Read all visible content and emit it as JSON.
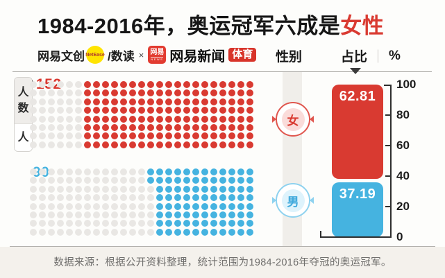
{
  "title": {
    "text": "1984-2016年，奥运冠军六成是",
    "highlight": "女性"
  },
  "brand": {
    "creative": "网易文创",
    "netease": "NetEase",
    "shudu": "/数读",
    "times": "×",
    "news_icon_top": "网易",
    "news_icon_bottom": "NEWS",
    "news_name": "网易新闻",
    "sports": "体育"
  },
  "table_header": {
    "gender": "性别",
    "share": "占比",
    "separator": "｜",
    "unit": "%"
  },
  "unit_tab": {
    "label": "人数",
    "unit": "人"
  },
  "colors": {
    "red": "#d93a31",
    "blue": "#45b3e0",
    "empty_dot": "#e9e7e4",
    "footer_bg": "#f4f1ec"
  },
  "waffle": {
    "cols": 25,
    "rows": 8,
    "empty_color": "#e9e7e4",
    "grids": [
      {
        "id": "female",
        "count_label": "152",
        "color": "#d93a31",
        "fill_from": [
          6,
          6,
          6,
          6,
          6,
          6,
          6,
          6
        ]
      },
      {
        "id": "male",
        "count_label": "90",
        "color": "#45b3e0",
        "fill_from": [
          13,
          13,
          14,
          14,
          14,
          14,
          14,
          14
        ]
      }
    ]
  },
  "genders": {
    "female": {
      "char": "女",
      "color": "#d93a31",
      "inner_bg": "#fadcda",
      "border": "#e0564e"
    },
    "male": {
      "char": "男",
      "color": "#3fa9dc",
      "inner_bg": "#def3fc",
      "border": "#8ed2ef"
    }
  },
  "bar": {
    "max": 100,
    "ticks": [
      100,
      80,
      60,
      40,
      20,
      0
    ],
    "segments": [
      {
        "id": "female",
        "value": 62.81,
        "label": "62.81",
        "color": "#d93a31"
      },
      {
        "id": "male",
        "value": 37.19,
        "label": "37.19",
        "color": "#45b3e0"
      }
    ]
  },
  "footer": {
    "source": "数据来源：根据公开资料整理，统计范围为1984-2016年夺冠的奥运冠军。"
  },
  "chart_data": [
    {
      "type": "bar",
      "subtype": "waffle-pictogram",
      "title": "1984-2016年，奥运冠军六成是女性",
      "categories": [
        "女",
        "男"
      ],
      "values": [
        152,
        90
      ],
      "value_unit": "人",
      "grid": {
        "rows": 8,
        "cols": 25,
        "total_dots_per_grid": 200
      },
      "notes": "female grid: 19 right-most columns filled red (152 dots); male grid: 11 full right columns plus 2 extra dots in top rows filled blue (90 dots)"
    },
    {
      "type": "bar",
      "subtype": "stacked-percent-column",
      "title": "占比 %",
      "categories": [
        "女",
        "男"
      ],
      "values": [
        62.81,
        37.19
      ],
      "ylim": [
        0,
        100
      ],
      "yticks": [
        0,
        20,
        40,
        60,
        80,
        100
      ],
      "grid": false,
      "legend_position": "gender badges on divider strip left of bar"
    }
  ]
}
